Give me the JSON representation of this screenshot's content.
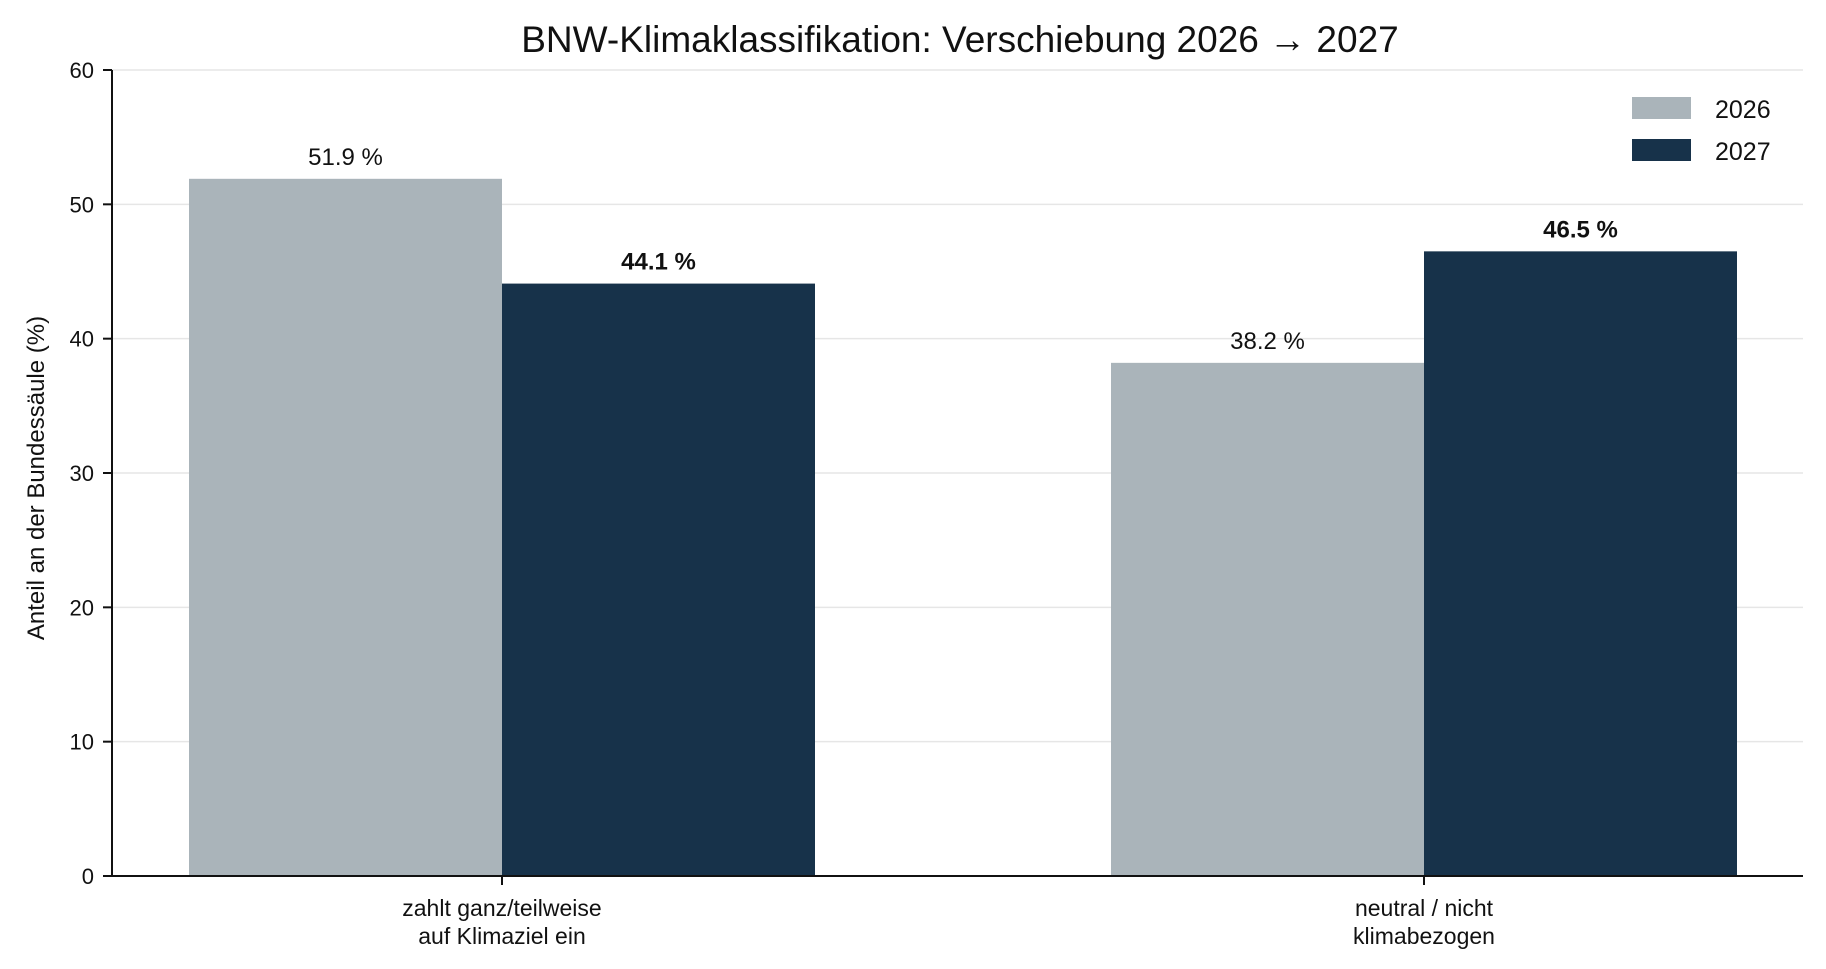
{
  "chart_data": {
    "type": "bar",
    "title": "BNW-Klimaklassifikation: Verschiebung 2026 → 2027",
    "ylabel": "Anteil an der Bundessäule (%)",
    "xlabel": "",
    "ylim": [
      0,
      60
    ],
    "yticks": [
      0,
      10,
      20,
      30,
      40,
      50,
      60
    ],
    "grid": true,
    "legend_position": "top-right",
    "categories": [
      [
        "zahlt ganz/teilweise",
        "auf Klimaziel ein"
      ],
      [
        "neutral / nicht",
        "klimabezogen"
      ]
    ],
    "series": [
      {
        "name": "2026",
        "color": "#aab4ba",
        "values": [
          51.9,
          38.2
        ],
        "labels": [
          "51.9 %",
          "38.2 %"
        ],
        "label_bold": false
      },
      {
        "name": "2027",
        "color": "#17324a",
        "values": [
          44.1,
          46.5
        ],
        "labels": [
          "44.1 %",
          "46.5 %"
        ],
        "label_bold": true
      }
    ]
  }
}
